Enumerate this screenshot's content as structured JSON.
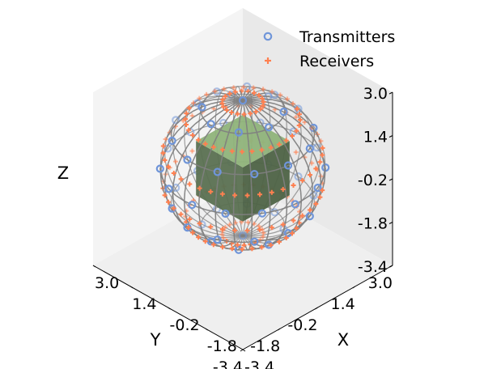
{
  "chart_data": {
    "type": "scatter",
    "projection": "3d-isometric",
    "grid": false,
    "legend_position": "top-right",
    "axes": {
      "x": {
        "label": "X",
        "range": [
          -3.4,
          3.0
        ],
        "ticks": [
          "-3.4",
          "-1.8",
          "-0.2",
          "1.4",
          "3.0"
        ]
      },
      "y": {
        "label": "Y",
        "range": [
          -3.4,
          3.0
        ],
        "ticks": [
          "-3.4",
          "-1.8",
          "-0.2",
          "1.4",
          "3.0"
        ]
      },
      "z": {
        "label": "Z",
        "range": [
          -3.4,
          3.0
        ],
        "ticks": [
          "-3.4",
          "-1.8",
          "-0.2",
          "1.4",
          "3.0"
        ]
      }
    },
    "sphere": {
      "center": [
        0,
        0,
        0
      ],
      "radius": 2.5,
      "color": "#808080"
    },
    "cube": {
      "center": [
        0,
        0,
        0
      ],
      "half_size": 1.0,
      "color": "#4f6b45"
    },
    "series": [
      {
        "name": "Transmitters",
        "marker": "open-circle",
        "color": "#6f95d9",
        "rings": [
          {
            "z": 2.5,
            "count": 1
          },
          {
            "z": 2.17,
            "count": 8
          },
          {
            "z": 1.25,
            "count": 12
          },
          {
            "z": 0.0,
            "count": 14
          },
          {
            "z": -1.25,
            "count": 12
          },
          {
            "z": -2.17,
            "count": 8
          },
          {
            "z": -2.5,
            "count": 1
          }
        ]
      },
      {
        "name": "Receivers",
        "marker": "plus",
        "color": "#ff8050",
        "rings": [
          {
            "z": 2.42,
            "count": 20
          },
          {
            "z": 1.8,
            "count": 36
          },
          {
            "z": 0.65,
            "count": 40
          },
          {
            "z": -0.65,
            "count": 40
          },
          {
            "z": -1.8,
            "count": 36
          },
          {
            "z": -2.42,
            "count": 20
          }
        ]
      }
    ]
  },
  "colors": {
    "pane_left": "#e9e9e9",
    "pane_right": "#f4f4f4",
    "pane_floor": "#efefef",
    "wire": "#808080",
    "cube_front": "#4e6346",
    "cube_side": "#5a7051",
    "cube_top": "#8fb37a"
  }
}
